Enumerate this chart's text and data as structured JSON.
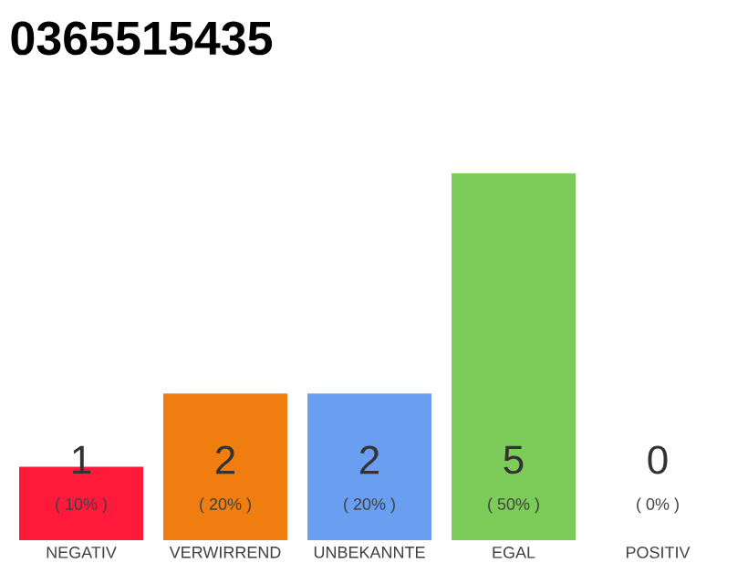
{
  "chart_data": {
    "type": "bar",
    "title": "0365515435",
    "categories": [
      "NEGATIV",
      "VERWIRREND",
      "UNBEKANNTE",
      "EGAL",
      "POSITIV"
    ],
    "values": [
      10,
      20,
      20,
      50,
      0
    ],
    "colors": [
      "#ff1a3c",
      "#f07d0f",
      "#6a9ef0",
      "#7dcc5a",
      "#dddddd"
    ],
    "value_labels": [
      "( 10% )",
      "( 20% )",
      "( 20% )",
      "( 50% )",
      "( 0% )"
    ],
    "annotations": [
      "1",
      "2",
      "2",
      "5",
      "0"
    ]
  }
}
